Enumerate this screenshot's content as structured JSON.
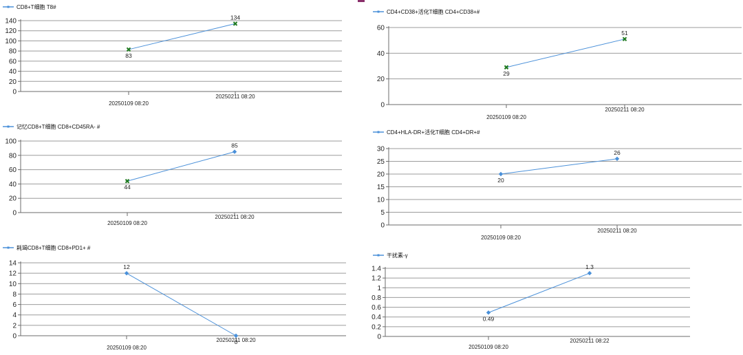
{
  "chart_data": [
    {
      "type": "line",
      "legend": "CD8+T细胞 T8#",
      "legend_position": "top-left",
      "categories": [
        "20250109 08:20",
        "20250211 08:20"
      ],
      "series": [
        {
          "name": "CD8+T细胞 T8#",
          "values": [
            83,
            134
          ],
          "data_labels": [
            "83",
            "134"
          ],
          "markers": [
            "x",
            "x"
          ]
        }
      ],
      "y_ticks": [
        0,
        20,
        40,
        60,
        80,
        100,
        120,
        140
      ],
      "ylim": [
        0,
        140
      ],
      "grid": true
    },
    {
      "type": "line",
      "legend": "CD4+CD38+活化T细胞 CD4+CD38+#",
      "legend_position": "top-left",
      "categories": [
        "20250109 08:20",
        "20250211 08:20"
      ],
      "series": [
        {
          "name": "CD4+CD38+活化T细胞 CD4+CD38+#",
          "values": [
            29,
            51
          ],
          "data_labels": [
            "29",
            "51"
          ],
          "markers": [
            "x",
            "x"
          ]
        }
      ],
      "y_ticks": [
        0,
        20,
        40,
        60
      ],
      "ylim": [
        0,
        60
      ],
      "grid": true
    },
    {
      "type": "line",
      "legend": "记忆CD8+T细胞 CD8+CD45RA- #",
      "legend_position": "top-left",
      "categories": [
        "20250109 08:20",
        "20250211 08:20"
      ],
      "series": [
        {
          "name": "记忆CD8+T细胞 CD8+CD45RA- #",
          "values": [
            44,
            85
          ],
          "data_labels": [
            "44",
            "85"
          ],
          "markers": [
            "x",
            "diamond"
          ]
        }
      ],
      "y_ticks": [
        0,
        20,
        40,
        60,
        80,
        100
      ],
      "ylim": [
        0,
        100
      ],
      "grid": true
    },
    {
      "type": "line",
      "legend": "CD4+HLA-DR+活化T细胞 CD4+DR+#",
      "legend_position": "top-left",
      "categories": [
        "20250109 08:20",
        "20250211 08:20"
      ],
      "series": [
        {
          "name": "CD4+HLA-DR+活化T细胞 CD4+DR+#",
          "values": [
            20,
            26
          ],
          "data_labels": [
            "20",
            "26"
          ],
          "markers": [
            "diamond",
            "diamond"
          ]
        }
      ],
      "y_ticks": [
        0,
        5,
        10,
        15,
        20,
        25,
        30
      ],
      "ylim": [
        0,
        30
      ],
      "grid": true
    },
    {
      "type": "line",
      "legend": "耗竭CD8+T细胞 CD8+PD1+ #",
      "legend_position": "top-left",
      "categories": [
        "20250109 08:20",
        "20250211 08:20"
      ],
      "series": [
        {
          "name": "耗竭CD8+T细胞 CD8+PD1+ #",
          "values": [
            12,
            0
          ],
          "data_labels": [
            "12",
            "0"
          ],
          "markers": [
            "diamond",
            "diamond"
          ]
        }
      ],
      "y_ticks": [
        0,
        2,
        4,
        6,
        8,
        10,
        12,
        14
      ],
      "ylim": [
        0,
        14
      ],
      "grid": true
    },
    {
      "type": "line",
      "legend": "干扰素-γ",
      "legend_position": "top-left",
      "categories": [
        "20250109 08:20",
        "20250211 08:22"
      ],
      "series": [
        {
          "name": "干扰素-γ",
          "values": [
            0.49,
            1.3
          ],
          "data_labels": [
            "0.49",
            "1.3"
          ],
          "markers": [
            "diamond",
            "diamond"
          ]
        }
      ],
      "y_ticks": [
        0,
        0.2,
        0.4,
        0.6,
        0.8,
        1,
        1.2,
        1.4
      ],
      "ylim": [
        0,
        1.4
      ],
      "grid": true
    }
  ],
  "colors": {
    "line": "#4a90d9",
    "marker_diamond": "#4a90d9",
    "marker_x": "#1f7a1f",
    "grid": "#9b9b9b"
  }
}
